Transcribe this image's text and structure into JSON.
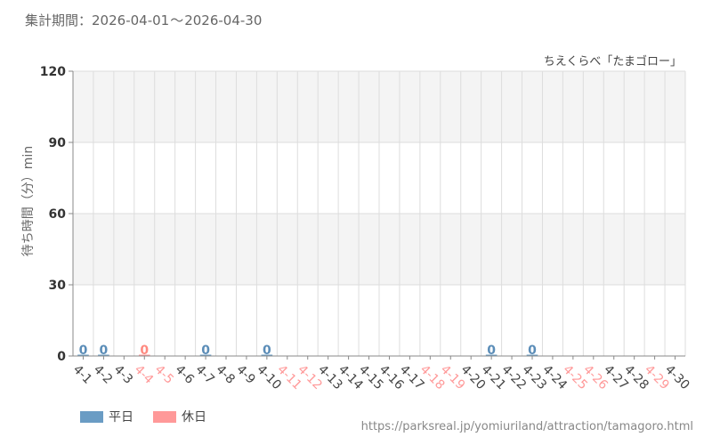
{
  "header": {
    "period_label": "集計期間：",
    "period_start": "2026-04-01",
    "period_sep": "〜",
    "period_end": "2026-04-30"
  },
  "footer": {
    "source_url": "https://parksreal.jp/yomiuriland/attraction/tamagoro.html"
  },
  "colors": {
    "weekday": "#6a9cc4",
    "holiday": "#ff9999",
    "weekday_value": "#5b8db8",
    "holiday_value": "#ff8a80",
    "grid": "#dddddd",
    "band": "#f4f4f4",
    "axis_tick_text": "#555555"
  },
  "chart_data": {
    "type": "bar",
    "title": "ちえくらべ「たまゴロー」",
    "ylabel": "待ち時間（分）min",
    "xlabel": "",
    "ylim": [
      0,
      120
    ],
    "yticks": [
      0,
      30,
      60,
      90,
      120
    ],
    "grid": true,
    "legend_position": "bottom-left",
    "legend": [
      {
        "name": "平日",
        "kind": "weekday"
      },
      {
        "name": "休日",
        "kind": "holiday"
      }
    ],
    "categories": [
      "4-1",
      "4-2",
      "4-3",
      "4-4",
      "4-5",
      "4-6",
      "4-7",
      "4-8",
      "4-9",
      "4-10",
      "4-11",
      "4-12",
      "4-13",
      "4-14",
      "4-15",
      "4-16",
      "4-17",
      "4-18",
      "4-19",
      "4-20",
      "4-21",
      "4-22",
      "4-23",
      "4-24",
      "4-25",
      "4-26",
      "4-27",
      "4-28",
      "4-29",
      "4-30"
    ],
    "day_type": [
      "weekday",
      "weekday",
      "weekday",
      "holiday",
      "holiday",
      "weekday",
      "weekday",
      "weekday",
      "weekday",
      "weekday",
      "holiday",
      "holiday",
      "weekday",
      "weekday",
      "weekday",
      "weekday",
      "weekday",
      "holiday",
      "holiday",
      "weekday",
      "weekday",
      "weekday",
      "weekday",
      "weekday",
      "holiday",
      "holiday",
      "weekday",
      "weekday",
      "holiday",
      "weekday"
    ],
    "values": [
      0,
      0,
      null,
      0,
      null,
      null,
      0,
      null,
      null,
      0,
      null,
      null,
      null,
      null,
      null,
      null,
      null,
      null,
      null,
      null,
      0,
      null,
      0,
      null,
      null,
      null,
      null,
      null,
      null,
      null
    ]
  }
}
